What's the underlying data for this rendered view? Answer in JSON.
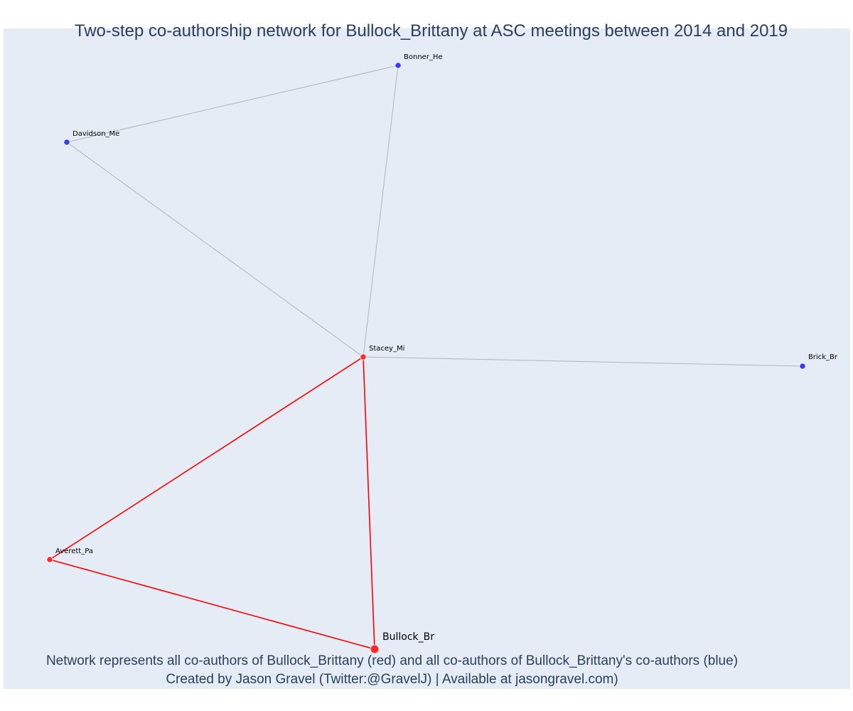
{
  "title": "Two-step co-authorship network for Bullock_Brittany at ASC meetings between 2014 and 2019",
  "caption": {
    "line1": "Network represents all co-authors of Bullock_Brittany (red) and all co-authors of Bullock_Brittany's co-authors (blue)",
    "line2": "Created by Jason Gravel (Twitter:@GravelJ) | Available at jasongravel.com)"
  },
  "colors": {
    "background": "#e5ecf6",
    "direct_coauthor": "#ff2a2a",
    "second_step_coauthor": "#3a3aff",
    "direct_edge": "#ff0000",
    "indirect_edge": "#b0b4c0",
    "text": "#2a3f5f"
  },
  "nodes": [
    {
      "id": "bullock",
      "label": "Bullock_Br",
      "group": "focal"
    },
    {
      "id": "stacey",
      "label": "Stacey_Mi",
      "group": "direct"
    },
    {
      "id": "averett",
      "label": "Averett_Pa",
      "group": "direct"
    },
    {
      "id": "davidson",
      "label": "Davidson_Me",
      "group": "second"
    },
    {
      "id": "bonner",
      "label": "Bonner_He",
      "group": "second"
    },
    {
      "id": "brick",
      "label": "Brick_Br",
      "group": "second"
    }
  ],
  "edges": [
    {
      "source": "stacey",
      "target": "bonner",
      "type": "indirect"
    },
    {
      "source": "stacey",
      "target": "davidson",
      "type": "indirect"
    },
    {
      "source": "davidson",
      "target": "bonner",
      "type": "indirect"
    },
    {
      "source": "stacey",
      "target": "brick",
      "type": "indirect"
    },
    {
      "source": "averett",
      "target": "stacey",
      "type": "direct"
    },
    {
      "source": "averett",
      "target": "bullock",
      "type": "direct"
    },
    {
      "source": "stacey",
      "target": "bullock",
      "type": "direct"
    }
  ]
}
